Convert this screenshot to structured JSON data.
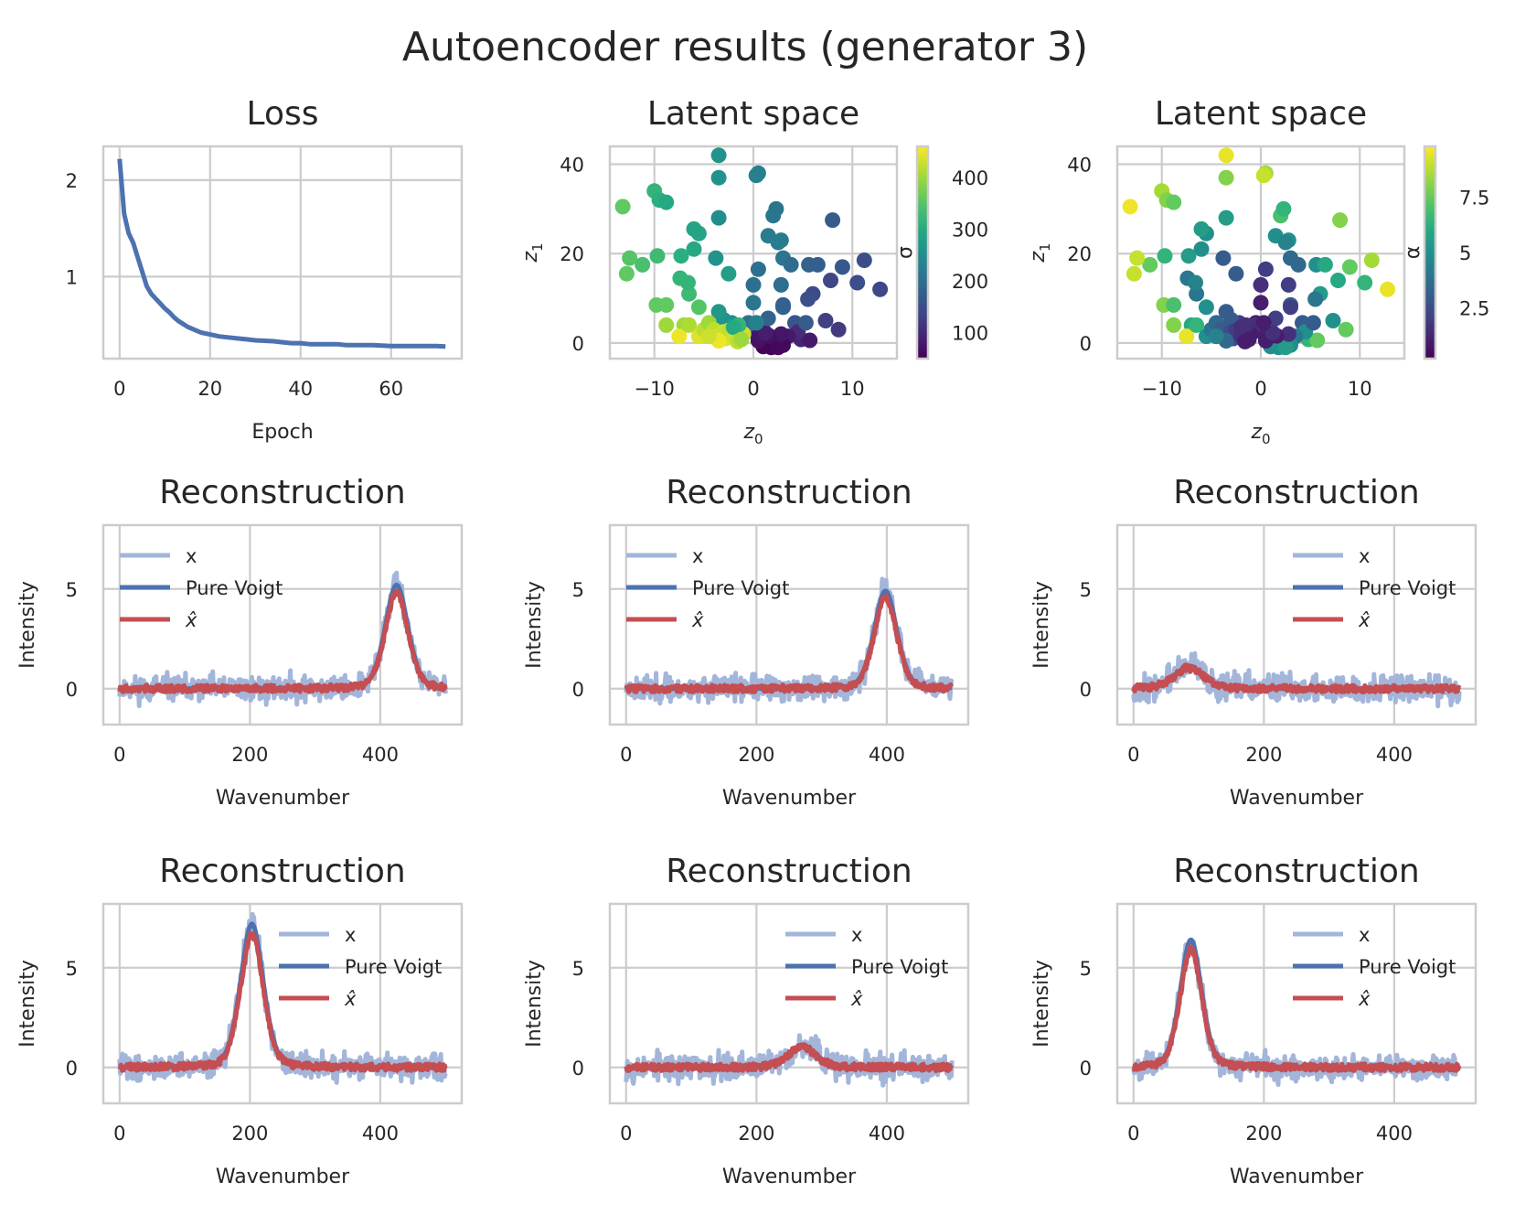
{
  "figure": {
    "title": "Autoencoder results (generator 3)"
  },
  "colors": {
    "blue": "#4c72b0",
    "light_blue": "#a3b6da",
    "red": "#c44e52",
    "grid": "#cccccc",
    "text": "#262626"
  },
  "chart_data": [
    {
      "type": "line",
      "title": "Loss",
      "xlabel": "Epoch",
      "ylabel": "",
      "xlim": [
        -3.6,
        75.6
      ],
      "ylim": [
        0.15,
        2.35
      ],
      "xticks": [
        0,
        20,
        40,
        60
      ],
      "yticks": [
        1,
        2
      ],
      "series": [
        {
          "color": "#4c72b0",
          "x": [
            0,
            1,
            2,
            3,
            4,
            5,
            6,
            7,
            8,
            9,
            10,
            11,
            12,
            13,
            14,
            15,
            16,
            17,
            18,
            19,
            20,
            22,
            24,
            26,
            28,
            30,
            32,
            34,
            36,
            38,
            40,
            42,
            44,
            46,
            48,
            50,
            52,
            54,
            56,
            58,
            60,
            62,
            64,
            66,
            68,
            70,
            72
          ],
          "y": [
            2.22,
            1.65,
            1.45,
            1.35,
            1.2,
            1.05,
            0.9,
            0.82,
            0.77,
            0.72,
            0.67,
            0.63,
            0.58,
            0.54,
            0.51,
            0.48,
            0.46,
            0.44,
            0.42,
            0.41,
            0.4,
            0.38,
            0.37,
            0.36,
            0.35,
            0.34,
            0.335,
            0.33,
            0.32,
            0.31,
            0.31,
            0.3,
            0.3,
            0.3,
            0.3,
            0.29,
            0.29,
            0.29,
            0.29,
            0.285,
            0.28,
            0.28,
            0.28,
            0.28,
            0.28,
            0.28,
            0.275
          ]
        }
      ]
    },
    {
      "type": "scatter",
      "title": "Latent space",
      "xlabel": "z_0",
      "ylabel": "z_1",
      "xlim": [
        -14.5,
        14.5
      ],
      "ylim": [
        -3.5,
        44
      ],
      "xticks": [
        -10,
        0,
        10
      ],
      "yticks": [
        0,
        20,
        40
      ],
      "colorbar": {
        "label": "σ",
        "range": [
          50,
          460
        ],
        "ticks": [
          100,
          200,
          300,
          400
        ],
        "colormap": "viridis"
      },
      "points": [
        [
          -13.2,
          30.5,
          360
        ],
        [
          -10,
          34,
          320
        ],
        [
          -9.5,
          32,
          310
        ],
        [
          -8.8,
          31.5,
          300
        ],
        [
          -3.5,
          42,
          260
        ],
        [
          -3.5,
          37,
          260
        ],
        [
          -3.5,
          28,
          250
        ],
        [
          0.5,
          38,
          230
        ],
        [
          0.3,
          37.5,
          230
        ],
        [
          2,
          28.5,
          210
        ],
        [
          2.3,
          30,
          210
        ],
        [
          5.6,
          17.5,
          180
        ],
        [
          6.5,
          17.5,
          175
        ],
        [
          8,
          27.5,
          170
        ],
        [
          9,
          17,
          165
        ],
        [
          11.2,
          18.5,
          150
        ],
        [
          10.5,
          13.5,
          150
        ],
        [
          12.8,
          12,
          140
        ],
        [
          8.6,
          3,
          120
        ],
        [
          7.3,
          5,
          130
        ],
        [
          7.8,
          14,
          140
        ],
        [
          6,
          11,
          145
        ],
        [
          5.5,
          9.8,
          150
        ],
        [
          4.2,
          4.5,
          160
        ],
        [
          3,
          8.5,
          170
        ],
        [
          4.8,
          0.8,
          90
        ],
        [
          5.7,
          0.6,
          80
        ],
        [
          4.5,
          2.5,
          100
        ],
        [
          3.5,
          1.5,
          80
        ],
        [
          2.2,
          0.5,
          70
        ],
        [
          1.5,
          -0.2,
          60
        ],
        [
          1,
          -0.8,
          55
        ],
        [
          1.8,
          -1,
          55
        ],
        [
          3,
          -0.5,
          60
        ],
        [
          2.5,
          -1,
          60
        ],
        [
          0.5,
          0.5,
          70
        ],
        [
          2.8,
          2,
          75
        ],
        [
          1.6,
          1.6,
          70
        ],
        [
          0.4,
          1.8,
          75
        ],
        [
          1.2,
          2.3,
          85
        ],
        [
          3,
          8,
          180
        ],
        [
          -0.5,
          4.5,
          210
        ],
        [
          0,
          9,
          210
        ],
        [
          0,
          13,
          200
        ],
        [
          0.5,
          16.5,
          200
        ],
        [
          2.8,
          13,
          200
        ],
        [
          3,
          19,
          210
        ],
        [
          1.5,
          24,
          220
        ],
        [
          2.8,
          23,
          220
        ],
        [
          2.5,
          22.5,
          220
        ],
        [
          3.8,
          17.5,
          195
        ],
        [
          5.3,
          4.5,
          170
        ],
        [
          1.5,
          5.5,
          180
        ],
        [
          -0.6,
          4,
          200
        ],
        [
          -2.2,
          4.5,
          250
        ],
        [
          -3,
          5.2,
          260
        ],
        [
          -3.5,
          7,
          270
        ],
        [
          -3.8,
          19,
          260
        ],
        [
          -2.5,
          15.5,
          280
        ],
        [
          -5.5,
          24.5,
          290
        ],
        [
          -6,
          25.5,
          290
        ],
        [
          -6,
          21,
          300
        ],
        [
          -7.3,
          19.5,
          310
        ],
        [
          -9.7,
          19.5,
          330
        ],
        [
          -11.2,
          17.5,
          340
        ],
        [
          -12.5,
          19,
          350
        ],
        [
          -12.8,
          15.5,
          360
        ],
        [
          -6.5,
          11,
          330
        ],
        [
          -7.4,
          14.5,
          320
        ],
        [
          -6.6,
          13.5,
          320
        ],
        [
          -5.5,
          8,
          350
        ],
        [
          -9.8,
          8.5,
          360
        ],
        [
          -8.8,
          8.5,
          360
        ],
        [
          -7,
          4,
          400
        ],
        [
          -7.5,
          1.5,
          450
        ],
        [
          -6.5,
          4,
          410
        ],
        [
          -5.5,
          1.5,
          440
        ],
        [
          -5,
          3,
          420
        ],
        [
          -4.5,
          4.5,
          400
        ],
        [
          -4,
          3,
          420
        ],
        [
          -3.5,
          1.5,
          440
        ],
        [
          -3,
          2.5,
          430
        ],
        [
          -2.8,
          1,
          440
        ],
        [
          -2.5,
          2.8,
          420
        ],
        [
          -2,
          1.5,
          430
        ],
        [
          -1.5,
          0.5,
          440
        ],
        [
          -1,
          2,
          430
        ],
        [
          -3.5,
          0.5,
          450
        ],
        [
          -8.8,
          4,
          400
        ],
        [
          -4.5,
          1.5,
          430
        ],
        [
          -1.5,
          4,
          320
        ],
        [
          -2,
          3.5,
          300
        ],
        [
          0.3,
          4.5,
          230
        ],
        [
          -1.6,
          0.3,
          420
        ],
        [
          -1.2,
          0.8,
          400
        ]
      ]
    },
    {
      "type": "scatter",
      "title": "Latent space",
      "xlabel": "z_0",
      "ylabel": "z_1",
      "xlim": [
        -14.5,
        14.5
      ],
      "ylim": [
        -3.5,
        44
      ],
      "xticks": [
        -10,
        0,
        10
      ],
      "yticks": [
        0,
        20,
        40
      ],
      "colorbar": {
        "label": "α",
        "range": [
          0.2,
          9.8
        ],
        "ticks": [
          2.5,
          5.0,
          7.5
        ],
        "colormap": "viridis"
      },
      "points": [
        [
          -13.2,
          30.5,
          9.6
        ],
        [
          -10,
          34,
          8.5
        ],
        [
          -9.5,
          32,
          8
        ],
        [
          -8.8,
          31.5,
          7.5
        ],
        [
          -3.5,
          42,
          9.5
        ],
        [
          -3.5,
          37,
          8
        ],
        [
          -3.5,
          28,
          5.5
        ],
        [
          0.5,
          38,
          8.5
        ],
        [
          0.3,
          37.5,
          9
        ],
        [
          2,
          28.5,
          7
        ],
        [
          2.3,
          30,
          6.5
        ],
        [
          5.6,
          17.5,
          5
        ],
        [
          6.5,
          17.5,
          6
        ],
        [
          8,
          27.5,
          8
        ],
        [
          9,
          17,
          7.5
        ],
        [
          11.2,
          18.5,
          8.5
        ],
        [
          10.5,
          13.5,
          6.5
        ],
        [
          12.8,
          12,
          9.5
        ],
        [
          8.6,
          3,
          7.5
        ],
        [
          7.3,
          5,
          5
        ],
        [
          7.8,
          14,
          6
        ],
        [
          6,
          11,
          5.5
        ],
        [
          5.5,
          9.8,
          4
        ],
        [
          4.2,
          4.5,
          3
        ],
        [
          3,
          8.5,
          3
        ],
        [
          4.8,
          0.8,
          6.5
        ],
        [
          5.7,
          0.6,
          7.5
        ],
        [
          4.5,
          2.5,
          5
        ],
        [
          3.5,
          1.5,
          4
        ],
        [
          2.2,
          0.5,
          5
        ],
        [
          1.5,
          -0.2,
          4.5
        ],
        [
          1,
          -0.8,
          5
        ],
        [
          1.8,
          -1,
          5
        ],
        [
          3,
          -0.5,
          5
        ],
        [
          2.5,
          -1,
          5.5
        ],
        [
          0.5,
          0.5,
          1
        ],
        [
          2.8,
          2,
          1.5
        ],
        [
          1.6,
          1.6,
          1
        ],
        [
          0.4,
          1.8,
          1
        ],
        [
          1.2,
          2.3,
          1.5
        ],
        [
          3,
          8,
          2
        ],
        [
          -0.5,
          4.5,
          1
        ],
        [
          0,
          9,
          1
        ],
        [
          0,
          13,
          1.5
        ],
        [
          0.5,
          16.5,
          2
        ],
        [
          2.8,
          13,
          2
        ],
        [
          3,
          19,
          3.5
        ],
        [
          1.5,
          24,
          5
        ],
        [
          2.8,
          23,
          5
        ],
        [
          2.5,
          22.5,
          4.5
        ],
        [
          3.8,
          17.5,
          3.5
        ],
        [
          5.3,
          4.5,
          3
        ],
        [
          1.5,
          5.5,
          2
        ],
        [
          -0.6,
          4,
          1.5
        ],
        [
          -2.2,
          4.5,
          2
        ],
        [
          -3,
          5.2,
          3
        ],
        [
          -3.5,
          7,
          3
        ],
        [
          -3.8,
          19,
          3
        ],
        [
          -2.5,
          15.5,
          3
        ],
        [
          -5.5,
          24.5,
          5
        ],
        [
          -6,
          25.5,
          5.5
        ],
        [
          -6,
          21,
          5
        ],
        [
          -7.3,
          19.5,
          5.5
        ],
        [
          -9.7,
          19.5,
          6.5
        ],
        [
          -11.2,
          17.5,
          7.5
        ],
        [
          -12.5,
          19,
          9
        ],
        [
          -12.8,
          15.5,
          9
        ],
        [
          -6.5,
          11,
          4
        ],
        [
          -7.4,
          14.5,
          4
        ],
        [
          -6.6,
          13.5,
          4.5
        ],
        [
          -5.5,
          8,
          5
        ],
        [
          -9.8,
          8.5,
          8
        ],
        [
          -8.8,
          8.5,
          7
        ],
        [
          -7,
          4,
          6
        ],
        [
          -7.5,
          1.5,
          9.5
        ],
        [
          -6.5,
          4,
          6.5
        ],
        [
          -5.5,
          1.5,
          5
        ],
        [
          -5,
          3,
          4
        ],
        [
          -4.5,
          4.5,
          3.5
        ],
        [
          -4,
          3,
          3
        ],
        [
          -3.5,
          1.5,
          3
        ],
        [
          -3,
          2.5,
          2.5
        ],
        [
          -2.8,
          1,
          2.5
        ],
        [
          -2.5,
          2.8,
          2
        ],
        [
          -2,
          1.5,
          1.5
        ],
        [
          -1.5,
          0.5,
          1
        ],
        [
          -1,
          2,
          1
        ],
        [
          -3.5,
          0.5,
          3.5
        ],
        [
          -8.8,
          4,
          8
        ],
        [
          -4.5,
          1.5,
          4.5
        ],
        [
          -1.5,
          4,
          1.5
        ],
        [
          -2,
          3.5,
          1.5
        ],
        [
          0.3,
          4.5,
          1
        ],
        [
          -1.6,
          0.3,
          1
        ],
        [
          -1.2,
          0.8,
          1
        ]
      ]
    },
    {
      "type": "line",
      "title": "Reconstruction",
      "xlabel": "Wavenumber",
      "ylabel": "Intensity",
      "xlim": [
        -25,
        525
      ],
      "ylim": [
        -1.8,
        8.2
      ],
      "xticks": [
        0,
        200,
        400
      ],
      "yticks": [
        0,
        5
      ],
      "legend": [
        "x",
        "Pure Voigt",
        "x̂"
      ],
      "legend_loc": "upper-left",
      "peak": {
        "center": 425,
        "height": 5.2,
        "width": 18
      },
      "noise": 0.45,
      "seed": 11
    },
    {
      "type": "line",
      "title": "Reconstruction",
      "xlabel": "Wavenumber",
      "ylabel": "Intensity",
      "xlim": [
        -25,
        525
      ],
      "ylim": [
        -1.8,
        8.2
      ],
      "xticks": [
        0,
        200,
        400
      ],
      "yticks": [
        0,
        5
      ],
      "legend": [
        "x",
        "Pure Voigt",
        "x̂"
      ],
      "legend_loc": "upper-left",
      "peak": {
        "center": 398,
        "height": 4.9,
        "width": 18
      },
      "noise": 0.45,
      "seed": 23
    },
    {
      "type": "line",
      "title": "Reconstruction",
      "xlabel": "Wavenumber",
      "ylabel": "Intensity",
      "xlim": [
        -25,
        525
      ],
      "ylim": [
        -1.8,
        8.2
      ],
      "xticks": [
        0,
        200,
        400
      ],
      "yticks": [
        0,
        5
      ],
      "legend": [
        "x",
        "Pure Voigt",
        "x̂"
      ],
      "legend_loc": "upper-right",
      "peak": {
        "center": 85,
        "height": 1.1,
        "width": 24
      },
      "noise": 0.5,
      "seed": 37
    },
    {
      "type": "line",
      "title": "Reconstruction",
      "xlabel": "Wavenumber",
      "ylabel": "Intensity",
      "xlim": [
        -25,
        525
      ],
      "ylim": [
        -1.8,
        8.2
      ],
      "xticks": [
        0,
        200,
        400
      ],
      "yticks": [
        0,
        5
      ],
      "legend": [
        "x",
        "Pure Voigt",
        "x̂"
      ],
      "legend_loc": "upper-right",
      "peak": {
        "center": 203,
        "height": 7.2,
        "width": 18
      },
      "noise": 0.45,
      "seed": 41
    },
    {
      "type": "line",
      "title": "Reconstruction",
      "xlabel": "Wavenumber",
      "ylabel": "Intensity",
      "xlim": [
        -25,
        525
      ],
      "ylim": [
        -1.8,
        8.2
      ],
      "xticks": [
        0,
        200,
        400
      ],
      "yticks": [
        0,
        5
      ],
      "legend": [
        "x",
        "Pure Voigt",
        "x̂"
      ],
      "legend_loc": "upper-right",
      "peak": {
        "center": 270,
        "height": 1.1,
        "width": 22
      },
      "noise": 0.5,
      "seed": 53
    },
    {
      "type": "line",
      "title": "Reconstruction",
      "xlabel": "Wavenumber",
      "ylabel": "Intensity",
      "xlim": [
        -25,
        525
      ],
      "ylim": [
        -1.8,
        8.2
      ],
      "xticks": [
        0,
        200,
        400
      ],
      "yticks": [
        0,
        5
      ],
      "legend": [
        "x",
        "Pure Voigt",
        "x̂"
      ],
      "legend_loc": "upper-right",
      "peak": {
        "center": 88,
        "height": 6.4,
        "width": 17
      },
      "noise": 0.45,
      "seed": 67
    }
  ]
}
